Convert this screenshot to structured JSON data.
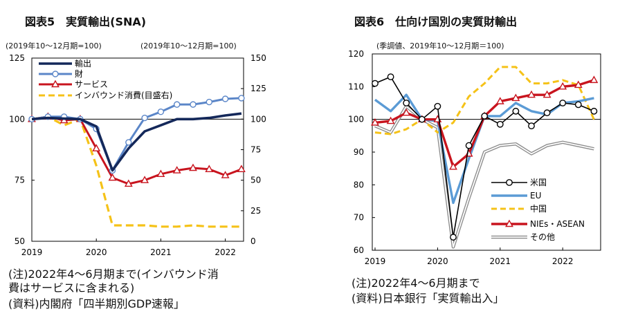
{
  "colors": {
    "navy": "#14285a",
    "blue": "#5b86c8",
    "red": "#c8141e",
    "yellow": "#f5c218",
    "gray": "#8c8c8c",
    "black": "#000000"
  },
  "left": {
    "title": "図表5　実質輸出(SNA)",
    "subtitle_left": "(2019年10～12月期=100)",
    "subtitle_right": "(2019年10～12月期=100)",
    "note_lines": [
      "(注)2022年4～6月期まで(インバウンド消",
      "費はサービスに含まれる)",
      "(資料)内閣府「四半期別GDP速報」"
    ],
    "chart_data": {
      "type": "line",
      "x": [
        "2019Q1",
        "2019Q2",
        "2019Q3",
        "2019Q4",
        "2020Q1",
        "2020Q2",
        "2020Q3",
        "2020Q4",
        "2021Q1",
        "2021Q2",
        "2021Q3",
        "2021Q4",
        "2022Q1",
        "2022Q2"
      ],
      "x_tick_labels": [
        "2019",
        "2020",
        "2021",
        "2022"
      ],
      "y_left": {
        "min": 50,
        "max": 125,
        "ticks": [
          "50",
          "75",
          "100",
          "125"
        ]
      },
      "y_right": {
        "min": 0,
        "max": 150,
        "ticks": [
          "0",
          "25",
          "50",
          "75",
          "100",
          "125",
          "150"
        ]
      },
      "reference_line": 100,
      "series": [
        {
          "name": "輸出",
          "axis": "left",
          "style": "solid-thick",
          "color": "#14285a",
          "marker": "none",
          "values": [
            100,
            100.5,
            100.2,
            100,
            97,
            79,
            88,
            95,
            97.5,
            100,
            100,
            100.5,
            101.5,
            102.3
          ]
        },
        {
          "name": "財",
          "axis": "left",
          "style": "solid",
          "color": "#5b86c8",
          "marker": "circle",
          "values": [
            100,
            101,
            101,
            100,
            96,
            79,
            90.5,
            100.5,
            103,
            106,
            106,
            107,
            108.3,
            108.6
          ]
        },
        {
          "name": "サービス",
          "axis": "left",
          "style": "solid",
          "color": "#c8141e",
          "marker": "triangle",
          "values": [
            100,
            101,
            99.5,
            100,
            88,
            76,
            73.5,
            75,
            77.5,
            79,
            80,
            79.5,
            77,
            79.5
          ]
        },
        {
          "name": "インバウンド消費(目盛右)",
          "axis": "right",
          "style": "dashed",
          "color": "#f5c218",
          "marker": "none",
          "values": [
            100,
            102,
            95,
            100,
            62,
            13,
            13,
            13,
            12,
            12,
            13,
            12,
            12,
            12
          ]
        }
      ]
    }
  },
  "right": {
    "title": "図表6　仕向け国別の実質財輸出",
    "subtitle": "(季調値、2019年10～12月期＝100)",
    "note_lines": [
      "(注)2022年4～6月期まで",
      "(資料)日本銀行「実質輸出入」"
    ],
    "chart_data": {
      "type": "line",
      "x": [
        "2019M01",
        "2019M04",
        "2019M07",
        "2019M10",
        "2020M01",
        "2020M04",
        "2020M07",
        "2020M10",
        "2021M01",
        "2021M04",
        "2021M07",
        "2021M10",
        "2022M01",
        "2022M04",
        "2022M06"
      ],
      "x_tick_labels": [
        "2019",
        "2020",
        "2021",
        "2022"
      ],
      "y": {
        "min": 60,
        "max": 120,
        "ticks": [
          "60",
          "70",
          "80",
          "90",
          "100",
          "110",
          "120"
        ]
      },
      "series": [
        {
          "name": "米国",
          "style": "solid",
          "color": "#000000",
          "marker": "circle",
          "values": [
            111,
            113,
            105,
            100,
            104,
            64,
            92,
            101,
            98.5,
            102.5,
            98,
            102,
            105,
            104.5,
            102.5
          ]
        },
        {
          "name": "EU",
          "style": "solid-thick",
          "color": "#5b9bd5",
          "marker": "none",
          "values": [
            106,
            102.5,
            107.5,
            100,
            99.5,
            74.5,
            88,
            101,
            101,
            105,
            102.5,
            101.5,
            105,
            105.5,
            106.5
          ]
        },
        {
          "name": "中国",
          "style": "dashed",
          "color": "#f5c218",
          "marker": "none",
          "values": [
            96,
            95.5,
            97,
            100,
            96,
            99,
            107,
            111,
            116,
            116,
            111,
            111,
            112,
            110.5,
            100
          ]
        },
        {
          "name": "NIEs・ASEAN",
          "style": "solid-thick",
          "color": "#c8141e",
          "marker": "triangle",
          "values": [
            99,
            99.5,
            102,
            100,
            100,
            85.5,
            89.5,
            101,
            105.5,
            106.5,
            107.5,
            107.5,
            110,
            110.5,
            112
          ]
        },
        {
          "name": "その他",
          "style": "double",
          "color": "#8c8c8c",
          "marker": "none",
          "values": [
            98,
            96,
            104,
            100,
            97.5,
            61,
            76,
            90,
            92,
            92.5,
            89.5,
            92,
            93,
            92,
            91
          ]
        }
      ]
    }
  }
}
